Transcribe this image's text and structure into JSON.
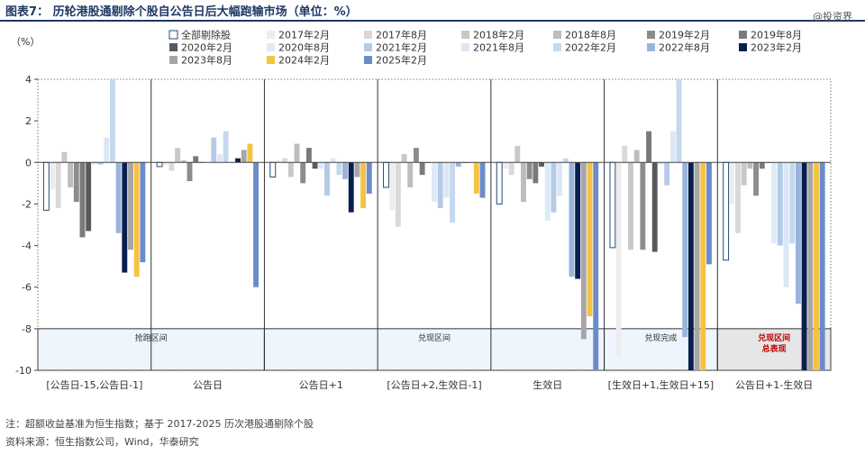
{
  "title": "图表7：  历轮港股通剔除个股自公告日后大幅跑输市场（单位：%）",
  "watermark": "@投资界",
  "footer": {
    "note": "注：超额收益基准为恒生指数；基于 2017-2025 历次港股通剔除个股",
    "source": "资料来源：恒生指数公司，Wind，华泰研究"
  },
  "colors": {
    "title": "#1f3864",
    "phase_fill": "#eef5fc",
    "highlight_fill": "#e6e6e6",
    "highlight_text": "#c00000"
  },
  "chart_data": {
    "type": "bar",
    "ylabel": "（%）",
    "ylim": [
      -10,
      4
    ],
    "yticks": [
      4,
      2,
      0,
      -2,
      -4,
      -6,
      -8,
      -10
    ],
    "categories": [
      "[公告日-15,公告日-1]",
      "公告日",
      "公告日+1",
      "[公告日+2,生效日-1]",
      "生效日",
      "[生效日+1,生效日+15]",
      "公告日+1-生效日"
    ],
    "phase_labels": [
      {
        "label": "抢跑区间",
        "from": 0,
        "to": 1,
        "highlight": false
      },
      {
        "label": "兑现区间",
        "from": 2,
        "to": 4,
        "highlight": false
      },
      {
        "label": "兑现完成",
        "from": 5,
        "to": 5,
        "highlight": false
      },
      {
        "label": "兑现区间\n总表现",
        "from": 6,
        "to": 6,
        "highlight": true
      }
    ],
    "series": [
      {
        "name": "全部剔除股",
        "color": "#ffffff",
        "stroke": "#1f4e79",
        "values": [
          -2.3,
          -0.2,
          -0.7,
          -1.2,
          -2.0,
          -4.1,
          -4.7
        ]
      },
      {
        "name": "2017年2月",
        "color": "#ededed",
        "values": [
          -1.3,
          -0.1,
          0.1,
          -2.3,
          -0.3,
          -9.3,
          -2.0
        ]
      },
      {
        "name": "2017年8月",
        "color": "#d9d9d9",
        "values": [
          -2.2,
          -0.4,
          0.2,
          -3.1,
          -0.6,
          0.8,
          -3.4
        ]
      },
      {
        "name": "2018年2月",
        "color": "#c8c8c8",
        "values": [
          0.5,
          0.7,
          -0.7,
          0.4,
          0.8,
          -4.2,
          -1.1
        ]
      },
      {
        "name": "2018年8月",
        "color": "#bdbdbd",
        "values": [
          -1.2,
          0.1,
          0.9,
          -1.2,
          -1.9,
          0.6,
          -0.3
        ]
      },
      {
        "name": "2019年2月",
        "color": "#8c8c8c",
        "values": [
          -1.9,
          -0.9,
          -1.0,
          0.7,
          -0.8,
          -4.2,
          -1.6
        ]
      },
      {
        "name": "2019年8月",
        "color": "#7a7a7a",
        "values": [
          -3.6,
          0.3,
          0.7,
          -0.6,
          -1.0,
          1.5,
          -0.3
        ]
      },
      {
        "name": "2020年2月",
        "color": "#595959",
        "values": [
          -3.3,
          0.0,
          -0.3,
          0.0,
          -0.2,
          -4.3,
          0.0
        ]
      },
      {
        "name": "2020年8月",
        "color": "#ddebf7",
        "values": [
          -0.1,
          0.0,
          -0.3,
          -1.9,
          -2.8,
          -0.1,
          -3.9
        ]
      },
      {
        "name": "2021年2月",
        "color": "#b4cbe8",
        "values": [
          -0.1,
          1.2,
          -1.6,
          -2.2,
          -2.4,
          -1.1,
          -4.0
        ]
      },
      {
        "name": "2021年8月",
        "color": "#dbe7f5",
        "values": [
          1.2,
          0.4,
          0.2,
          -1.7,
          -1.6,
          1.5,
          -6.0
        ]
      },
      {
        "name": "2022年2月",
        "color": "#c5d8ee",
        "values": [
          4.0,
          1.5,
          -0.6,
          -2.9,
          0.2,
          4.0,
          -3.9
        ]
      },
      {
        "name": "2022年8月",
        "color": "#9ab4dc",
        "values": [
          -3.4,
          0.0,
          -0.8,
          -0.2,
          -5.5,
          -8.4,
          -6.8
        ]
      },
      {
        "name": "2023年2月",
        "color": "#0a1f4f",
        "values": [
          -5.3,
          0.2,
          -2.4,
          0.0,
          -5.6,
          -10.0,
          -10.0
        ]
      },
      {
        "name": "2023年8月",
        "color": "#a6a6a6",
        "values": [
          -4.2,
          0.6,
          -0.7,
          0.0,
          -8.5,
          -10.0,
          -10.0
        ]
      },
      {
        "name": "2024年2月",
        "color": "#f5c242",
        "values": [
          -5.5,
          0.9,
          -2.2,
          -1.5,
          -7.4,
          -10.0,
          -10.0
        ]
      },
      {
        "name": "2025年2月",
        "color": "#6a8cc9",
        "values": [
          -4.8,
          -6.0,
          -1.5,
          -1.7,
          -10.0,
          -4.9,
          -10.0
        ]
      }
    ]
  }
}
